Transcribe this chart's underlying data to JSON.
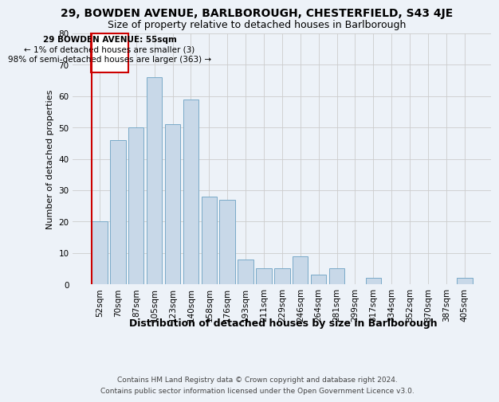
{
  "title1": "29, BOWDEN AVENUE, BARLBOROUGH, CHESTERFIELD, S43 4JE",
  "title2": "Size of property relative to detached houses in Barlborough",
  "xlabel": "Distribution of detached houses by size in Barlborough",
  "ylabel": "Number of detached properties",
  "bar_labels": [
    "52sqm",
    "70sqm",
    "87sqm",
    "105sqm",
    "123sqm",
    "140sqm",
    "158sqm",
    "176sqm",
    "193sqm",
    "211sqm",
    "229sqm",
    "246sqm",
    "264sqm",
    "281sqm",
    "299sqm",
    "317sqm",
    "334sqm",
    "352sqm",
    "370sqm",
    "387sqm",
    "405sqm"
  ],
  "bar_values": [
    20,
    46,
    50,
    66,
    51,
    59,
    28,
    27,
    8,
    5,
    5,
    9,
    3,
    5,
    0,
    2,
    0,
    0,
    0,
    0,
    2
  ],
  "bar_color": "#c8d8e8",
  "bar_edgecolor": "#7aaac8",
  "annotation_line1": "29 BOWDEN AVENUE: 55sqm",
  "annotation_line2": "← 1% of detached houses are smaller (3)",
  "annotation_line3": "98% of semi-detached houses are larger (363) →",
  "annotation_box_color": "#cc0000",
  "ylim": [
    0,
    80
  ],
  "yticks": [
    0,
    10,
    20,
    30,
    40,
    50,
    60,
    70,
    80
  ],
  "grid_color": "#cccccc",
  "background_color": "#edf2f8",
  "plot_bg_color": "#edf2f8",
  "footer1": "Contains HM Land Registry data © Crown copyright and database right 2024.",
  "footer2": "Contains public sector information licensed under the Open Government Licence v3.0.",
  "title1_fontsize": 10,
  "title2_fontsize": 9,
  "xlabel_fontsize": 9,
  "ylabel_fontsize": 8,
  "tick_fontsize": 7.5,
  "annotation_fontsize": 7.5,
  "footer_fontsize": 6.5
}
